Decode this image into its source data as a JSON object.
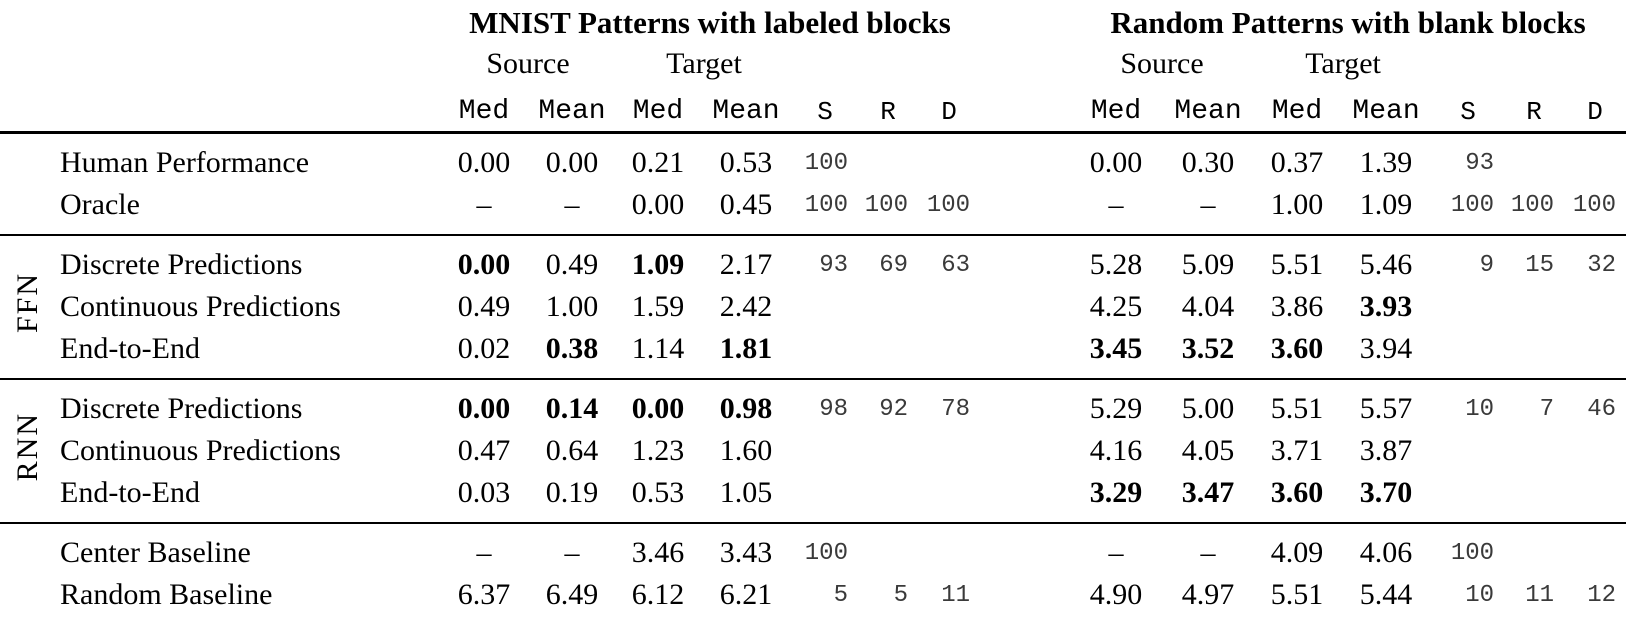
{
  "header": {
    "groups": [
      {
        "title": "MNIST Patterns with labeled blocks",
        "source": "Source",
        "target": "Target",
        "cols": [
          "Med",
          "Mean",
          "Med",
          "Mean"
        ],
        "srd": [
          "S",
          "R",
          "D"
        ]
      },
      {
        "title": "Random Patterns with blank blocks",
        "source": "Source",
        "target": "Target",
        "cols": [
          "Med",
          "Mean",
          "Med",
          "Mean"
        ],
        "srd": [
          "S",
          "R",
          "D"
        ]
      }
    ]
  },
  "sections": [
    {
      "side_label": "",
      "rows": [
        {
          "label": "Human Performance",
          "left": [
            {
              "v": "0.00"
            },
            {
              "v": "0.00"
            },
            {
              "v": "0.21"
            },
            {
              "v": "0.53"
            },
            {
              "v": "100"
            },
            {
              "v": ""
            },
            {
              "v": ""
            }
          ],
          "right": [
            {
              "v": "0.00"
            },
            {
              "v": "0.30"
            },
            {
              "v": "0.37"
            },
            {
              "v": "1.39"
            },
            {
              "v": "93"
            },
            {
              "v": ""
            },
            {
              "v": ""
            }
          ]
        },
        {
          "label": "Oracle",
          "left": [
            {
              "v": "–"
            },
            {
              "v": "–"
            },
            {
              "v": "0.00"
            },
            {
              "v": "0.45"
            },
            {
              "v": "100"
            },
            {
              "v": "100"
            },
            {
              "v": "100"
            }
          ],
          "right": [
            {
              "v": "–"
            },
            {
              "v": "–"
            },
            {
              "v": "1.00"
            },
            {
              "v": "1.09"
            },
            {
              "v": "100"
            },
            {
              "v": "100"
            },
            {
              "v": "100"
            }
          ]
        }
      ]
    },
    {
      "side_label": "FFN",
      "rows": [
        {
          "label": "Discrete Predictions",
          "left": [
            {
              "v": "0.00",
              "b": true
            },
            {
              "v": "0.49"
            },
            {
              "v": "1.09",
              "b": true
            },
            {
              "v": "2.17"
            },
            {
              "v": "93"
            },
            {
              "v": "69"
            },
            {
              "v": "63"
            }
          ],
          "right": [
            {
              "v": "5.28"
            },
            {
              "v": "5.09"
            },
            {
              "v": "5.51"
            },
            {
              "v": "5.46"
            },
            {
              "v": "9"
            },
            {
              "v": "15"
            },
            {
              "v": "32"
            }
          ]
        },
        {
          "label": "Continuous Predictions",
          "left": [
            {
              "v": "0.49"
            },
            {
              "v": "1.00"
            },
            {
              "v": "1.59"
            },
            {
              "v": "2.42"
            },
            {
              "v": ""
            },
            {
              "v": ""
            },
            {
              "v": ""
            }
          ],
          "right": [
            {
              "v": "4.25"
            },
            {
              "v": "4.04"
            },
            {
              "v": "3.86"
            },
            {
              "v": "3.93",
              "b": true
            },
            {
              "v": ""
            },
            {
              "v": ""
            },
            {
              "v": ""
            }
          ]
        },
        {
          "label": "End-to-End",
          "left": [
            {
              "v": "0.02"
            },
            {
              "v": "0.38",
              "b": true
            },
            {
              "v": "1.14"
            },
            {
              "v": "1.81",
              "b": true
            },
            {
              "v": ""
            },
            {
              "v": ""
            },
            {
              "v": ""
            }
          ],
          "right": [
            {
              "v": "3.45",
              "b": true
            },
            {
              "v": "3.52",
              "b": true
            },
            {
              "v": "3.60",
              "b": true
            },
            {
              "v": "3.94"
            },
            {
              "v": ""
            },
            {
              "v": ""
            },
            {
              "v": ""
            }
          ]
        }
      ]
    },
    {
      "side_label": "RNN",
      "rows": [
        {
          "label": "Discrete Predictions",
          "left": [
            {
              "v": "0.00",
              "b": true
            },
            {
              "v": "0.14",
              "b": true
            },
            {
              "v": "0.00",
              "b": true
            },
            {
              "v": "0.98",
              "b": true
            },
            {
              "v": "98"
            },
            {
              "v": "92"
            },
            {
              "v": "78"
            }
          ],
          "right": [
            {
              "v": "5.29"
            },
            {
              "v": "5.00"
            },
            {
              "v": "5.51"
            },
            {
              "v": "5.57"
            },
            {
              "v": "10"
            },
            {
              "v": "7"
            },
            {
              "v": "46"
            }
          ]
        },
        {
          "label": "Continuous Predictions",
          "left": [
            {
              "v": "0.47"
            },
            {
              "v": "0.64"
            },
            {
              "v": "1.23"
            },
            {
              "v": "1.60"
            },
            {
              "v": ""
            },
            {
              "v": ""
            },
            {
              "v": ""
            }
          ],
          "right": [
            {
              "v": "4.16"
            },
            {
              "v": "4.05"
            },
            {
              "v": "3.71"
            },
            {
              "v": "3.87"
            },
            {
              "v": ""
            },
            {
              "v": ""
            },
            {
              "v": ""
            }
          ]
        },
        {
          "label": "End-to-End",
          "left": [
            {
              "v": "0.03"
            },
            {
              "v": "0.19"
            },
            {
              "v": "0.53"
            },
            {
              "v": "1.05"
            },
            {
              "v": ""
            },
            {
              "v": ""
            },
            {
              "v": ""
            }
          ],
          "right": [
            {
              "v": "3.29",
              "b": true
            },
            {
              "v": "3.47",
              "b": true
            },
            {
              "v": "3.60",
              "b": true
            },
            {
              "v": "3.70",
              "b": true
            },
            {
              "v": ""
            },
            {
              "v": ""
            },
            {
              "v": ""
            }
          ]
        }
      ]
    },
    {
      "side_label": "",
      "rows": [
        {
          "label": "Center Baseline",
          "left": [
            {
              "v": "–"
            },
            {
              "v": "–"
            },
            {
              "v": "3.46"
            },
            {
              "v": "3.43"
            },
            {
              "v": "100"
            },
            {
              "v": ""
            },
            {
              "v": ""
            }
          ],
          "right": [
            {
              "v": "–"
            },
            {
              "v": "–"
            },
            {
              "v": "4.09"
            },
            {
              "v": "4.06"
            },
            {
              "v": "100"
            },
            {
              "v": ""
            },
            {
              "v": ""
            }
          ]
        },
        {
          "label": "Random Baseline",
          "left": [
            {
              "v": "6.37"
            },
            {
              "v": "6.49"
            },
            {
              "v": "6.12"
            },
            {
              "v": "6.21"
            },
            {
              "v": "5"
            },
            {
              "v": "5"
            },
            {
              "v": "11"
            }
          ],
          "right": [
            {
              "v": "4.90"
            },
            {
              "v": "4.97"
            },
            {
              "v": "5.51"
            },
            {
              "v": "5.44"
            },
            {
              "v": "10"
            },
            {
              "v": "11"
            },
            {
              "v": "12"
            }
          ]
        }
      ]
    }
  ]
}
